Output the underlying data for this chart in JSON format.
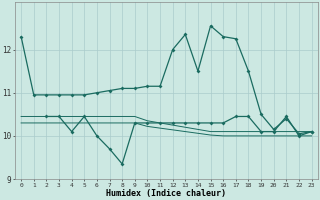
{
  "title": "",
  "xlabel": "Humidex (Indice chaleur)",
  "ylabel": "",
  "xlim": [
    -0.5,
    23.5
  ],
  "ylim": [
    9,
    13.1
  ],
  "yticks": [
    9,
    10,
    11,
    12
  ],
  "ytick_labels": [
    "9",
    "10",
    "11",
    "12"
  ],
  "xticks": [
    0,
    1,
    2,
    3,
    4,
    5,
    6,
    7,
    8,
    9,
    10,
    11,
    12,
    13,
    14,
    15,
    16,
    17,
    18,
    19,
    20,
    21,
    22,
    23
  ],
  "bg_color": "#cce8e2",
  "grid_color": "#aacccc",
  "line_color": "#1a6b60",
  "line1_x": [
    0,
    1,
    2,
    3,
    4,
    5,
    6,
    7,
    8,
    9,
    10,
    11,
    12,
    13,
    14,
    15,
    16,
    17,
    18,
    19,
    20,
    21,
    22,
    23
  ],
  "line1_y": [
    12.3,
    10.95,
    10.95,
    10.95,
    10.95,
    10.95,
    11.0,
    11.05,
    11.1,
    11.1,
    11.15,
    11.15,
    12.0,
    12.35,
    11.5,
    12.55,
    12.3,
    12.25,
    11.5,
    10.5,
    10.15,
    10.4,
    10.05,
    10.1
  ],
  "line2_x": [
    2,
    3,
    4,
    5,
    6,
    7,
    8,
    9,
    10,
    11,
    12,
    13,
    14,
    15,
    16,
    17,
    18,
    19,
    20,
    21,
    22,
    23
  ],
  "line2_y": [
    10.45,
    10.45,
    10.1,
    10.45,
    10.0,
    9.7,
    9.35,
    10.3,
    10.3,
    10.3,
    10.3,
    10.3,
    10.3,
    10.3,
    10.3,
    10.45,
    10.45,
    10.1,
    10.1,
    10.45,
    10.0,
    10.1
  ],
  "line3_x": [
    0,
    1,
    2,
    3,
    4,
    5,
    6,
    7,
    8,
    9,
    10,
    11,
    12,
    13,
    14,
    15,
    16,
    17,
    18,
    19,
    20,
    21,
    22,
    23
  ],
  "line3_y": [
    10.45,
    10.45,
    10.45,
    10.45,
    10.45,
    10.45,
    10.45,
    10.45,
    10.45,
    10.45,
    10.35,
    10.3,
    10.25,
    10.2,
    10.15,
    10.1,
    10.1,
    10.1,
    10.1,
    10.1,
    10.1,
    10.1,
    10.1,
    10.1
  ],
  "line4_x": [
    0,
    1,
    2,
    3,
    4,
    5,
    6,
    7,
    8,
    9,
    10,
    11,
    12,
    13,
    14,
    15,
    16,
    17,
    18,
    19,
    20,
    21,
    22,
    23
  ],
  "line4_y": [
    10.3,
    10.3,
    10.3,
    10.3,
    10.3,
    10.3,
    10.3,
    10.3,
    10.3,
    10.3,
    10.22,
    10.18,
    10.14,
    10.1,
    10.06,
    10.02,
    10.0,
    10.0,
    10.0,
    10.0,
    10.0,
    10.0,
    10.0,
    10.0
  ]
}
